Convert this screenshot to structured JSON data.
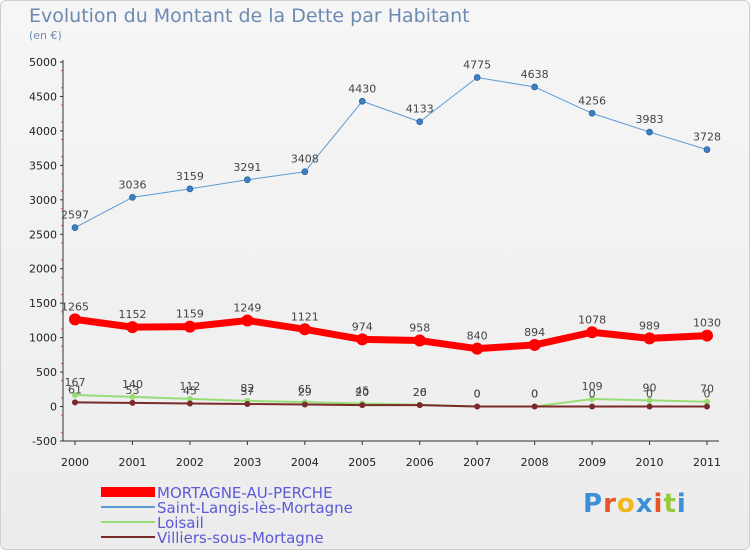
{
  "chart_data": {
    "type": "line",
    "title": "Evolution du Montant de la Dette par Habitant",
    "subtitle": "(en €)",
    "xlabel": "",
    "ylabel": "",
    "ylim": [
      -500,
      5000
    ],
    "yticks": [
      -500,
      0,
      500,
      1000,
      1500,
      2000,
      2500,
      3000,
      3500,
      4000,
      4500,
      5000
    ],
    "x": [
      "2000",
      "2001",
      "2002",
      "2003",
      "2004",
      "2005",
      "2006",
      "2007",
      "2008",
      "2009",
      "2010",
      "2011"
    ],
    "grid": false,
    "legend_position": "bottom-left",
    "series": [
      {
        "name": "Saint-Langis-lès-Mortagne",
        "color": "#5b9bd5",
        "width": 1,
        "values": [
          2597,
          3036,
          3159,
          3291,
          3408,
          4430,
          4133,
          4775,
          4638,
          4256,
          3983,
          3728
        ]
      },
      {
        "name": "Loisail",
        "color": "#99dd77",
        "width": 2,
        "values": [
          167,
          140,
          112,
          82,
          65,
          45,
          26,
          0,
          0,
          109,
          90,
          70
        ]
      },
      {
        "name": "Villiers-sous-Mortagne",
        "color": "#7a2a2a",
        "width": 2,
        "values": [
          61,
          53,
          45,
          37,
          29,
          20,
          20,
          0,
          0,
          0,
          0,
          0
        ]
      },
      {
        "name": "MORTAGNE-AU-PERCHE",
        "color": "#ff0000",
        "width": 7,
        "values": [
          1265,
          1152,
          1159,
          1249,
          1121,
          974,
          958,
          840,
          894,
          1078,
          989,
          1030
        ]
      }
    ],
    "legend_order": [
      "MORTAGNE-AU-PERCHE",
      "Saint-Langis-lès-Mortagne",
      "Loisail",
      "Villiers-sous-Mortagne"
    ]
  },
  "logo": {
    "text": "Proxiti",
    "letters": [
      "P",
      "r",
      "o",
      "x",
      "i",
      "t",
      "i"
    ],
    "colors": [
      "#3d8fd6",
      "#e8542a",
      "#f0b81c",
      "#3d8fd6",
      "#e8542a",
      "#99c83c",
      "#3d8fd6"
    ]
  }
}
